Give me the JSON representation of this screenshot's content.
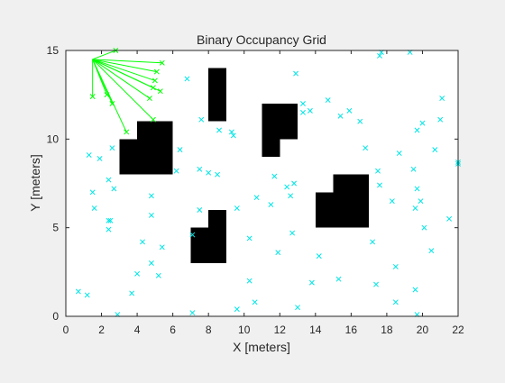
{
  "chart_data": {
    "type": "scatter",
    "title": "Binary Occupancy Grid",
    "xlabel": "X [meters]",
    "ylabel": "Y [meters]",
    "xlim": [
      0,
      22
    ],
    "ylim": [
      0,
      15
    ],
    "xticks": [
      0,
      2,
      4,
      6,
      8,
      10,
      12,
      14,
      16,
      18,
      20,
      22
    ],
    "yticks": [
      0,
      5,
      10,
      15
    ],
    "grid": false,
    "colors": {
      "occupied": "#000000",
      "free": "#ffffff",
      "particles": "#00e5e5",
      "rays": "#00ff00"
    },
    "occupied_cells": [
      [
        4,
        10,
        1,
        1
      ],
      [
        3,
        8,
        3,
        2
      ],
      [
        5,
        10,
        1,
        1
      ],
      [
        8,
        11,
        1,
        3
      ],
      [
        11,
        9,
        1,
        3
      ],
      [
        12,
        10,
        1,
        2
      ],
      [
        7,
        3,
        2,
        2
      ],
      [
        8,
        5,
        1,
        1
      ],
      [
        14,
        5,
        2,
        2
      ],
      [
        15,
        7,
        2,
        1
      ],
      [
        16,
        5,
        1,
        2
      ]
    ],
    "ray_origin": [
      1.5,
      14.5
    ],
    "ray_ends": [
      [
        1.5,
        12.4
      ],
      [
        2.3,
        12.5
      ],
      [
        2.6,
        12.0
      ],
      [
        3.4,
        10.4
      ],
      [
        4.9,
        11.1
      ],
      [
        4.7,
        12.3
      ],
      [
        4.9,
        12.9
      ],
      [
        5.3,
        12.7
      ],
      [
        5.0,
        13.3
      ],
      [
        5.1,
        13.8
      ],
      [
        5.4,
        14.3
      ],
      [
        2.8,
        15.0
      ]
    ],
    "particles": [
      [
        0.7,
        1.4
      ],
      [
        1.2,
        1.2
      ],
      [
        1.3,
        9.1
      ],
      [
        1.5,
        7.0
      ],
      [
        1.6,
        6.1
      ],
      [
        1.9,
        8.9
      ],
      [
        2.4,
        7.7
      ],
      [
        2.4,
        5.4
      ],
      [
        2.4,
        4.9
      ],
      [
        2.5,
        5.4
      ],
      [
        2.6,
        9.5
      ],
      [
        2.7,
        7.2
      ],
      [
        2.9,
        0.1
      ],
      [
        3.7,
        1.3
      ],
      [
        4.0,
        2.4
      ],
      [
        4.3,
        4.2
      ],
      [
        4.8,
        6.8
      ],
      [
        4.8,
        5.7
      ],
      [
        4.8,
        3.0
      ],
      [
        5.2,
        2.3
      ],
      [
        5.4,
        3.9
      ],
      [
        6.2,
        8.2
      ],
      [
        6.4,
        9.4
      ],
      [
        6.8,
        13.4
      ],
      [
        7.1,
        0.2
      ],
      [
        7.1,
        4.6
      ],
      [
        7.5,
        6.0
      ],
      [
        7.5,
        8.3
      ],
      [
        7.6,
        11.1
      ],
      [
        8.0,
        8.1
      ],
      [
        8.5,
        8.0
      ],
      [
        8.6,
        10.5
      ],
      [
        9.3,
        10.4
      ],
      [
        9.4,
        10.2
      ],
      [
        9.6,
        6.1
      ],
      [
        9.6,
        0.4
      ],
      [
        10.3,
        4.4
      ],
      [
        10.3,
        2.0
      ],
      [
        10.6,
        0.8
      ],
      [
        10.7,
        6.7
      ],
      [
        11.5,
        6.3
      ],
      [
        11.7,
        7.9
      ],
      [
        11.9,
        3.6
      ],
      [
        12.4,
        7.3
      ],
      [
        12.6,
        6.8
      ],
      [
        12.7,
        4.7
      ],
      [
        12.8,
        7.5
      ],
      [
        12.9,
        13.7
      ],
      [
        13.0,
        0.5
      ],
      [
        13.3,
        11.5
      ],
      [
        13.3,
        12.0
      ],
      [
        13.7,
        11.6
      ],
      [
        13.8,
        1.9
      ],
      [
        14.2,
        3.4
      ],
      [
        14.7,
        12.2
      ],
      [
        15.3,
        2.1
      ],
      [
        15.4,
        11.3
      ],
      [
        15.9,
        11.6
      ],
      [
        16.5,
        11.0
      ],
      [
        16.8,
        9.5
      ],
      [
        17.2,
        4.2
      ],
      [
        17.4,
        1.8
      ],
      [
        17.5,
        8.2
      ],
      [
        17.6,
        7.4
      ],
      [
        17.6,
        14.7
      ],
      [
        17.7,
        14.9
      ],
      [
        18.3,
        6.5
      ],
      [
        18.5,
        0.8
      ],
      [
        18.5,
        2.8
      ],
      [
        18.7,
        9.2
      ],
      [
        19.3,
        14.9
      ],
      [
        19.5,
        8.3
      ],
      [
        19.6,
        1.5
      ],
      [
        19.6,
        6.1
      ],
      [
        19.7,
        0.1
      ],
      [
        19.7,
        7.2
      ],
      [
        19.7,
        10.5
      ],
      [
        19.9,
        6.5
      ],
      [
        20.0,
        10.9
      ],
      [
        20.1,
        5.0
      ],
      [
        20.5,
        3.7
      ],
      [
        20.7,
        9.4
      ],
      [
        21.0,
        11.1
      ],
      [
        21.1,
        12.3
      ],
      [
        21.5,
        5.5
      ],
      [
        22.0,
        8.7
      ],
      [
        22.0,
        8.6
      ]
    ]
  }
}
